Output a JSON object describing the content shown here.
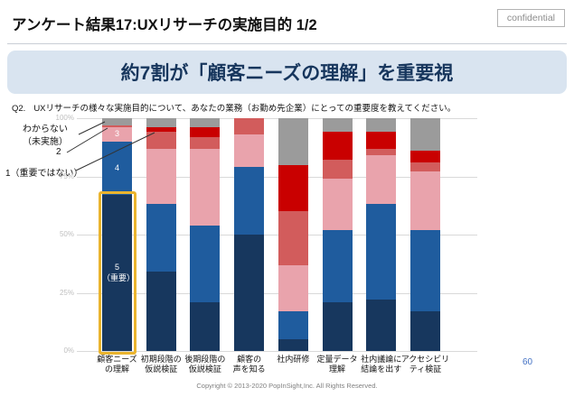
{
  "header": {
    "title": "アンケート結果17:UXリサーチの実施目的 1/2",
    "confidential": "confidential"
  },
  "banner": {
    "text": "約7割が「顧客ニーズの理解」を重要視"
  },
  "question": {
    "label": "Q2.",
    "text": "UXリサーチの様々な実施目的について、あなたの業務（お勤め先企業）にとっての重要度を教えてください。"
  },
  "annotations": {
    "unknown": "わからない\n（未実施）",
    "two": "2",
    "one": "1（重要ではない）"
  },
  "chart_data": {
    "type": "bar",
    "stacked": true,
    "unit": "%",
    "ylim": [
      0,
      100
    ],
    "grid": true,
    "legend_position": "none",
    "yticks": [
      "100%",
      "75%",
      "50%",
      "25%",
      "0%"
    ],
    "categories": [
      "顧客ニーズ\nの理解",
      "初期段階の\n仮説検証",
      "後期段階の\n仮説検証",
      "顧客の\n声を知る",
      "社内研修",
      "定量データ\n理解",
      "社内議論に\n結論を出す",
      "アクセシビリ\nティ検証"
    ],
    "stack_order": "first_series_at_bottom",
    "series": [
      {
        "name": "5（重要）",
        "color": "#17375E",
        "first_bar_label": "5\n（重要）",
        "values": [
          67,
          34,
          21,
          50,
          5,
          21,
          22,
          17
        ]
      },
      {
        "name": "4",
        "color": "#1F5C9E",
        "first_bar_label": "4",
        "values": [
          23,
          29,
          33,
          29,
          12,
          31,
          41,
          35
        ]
      },
      {
        "name": "3",
        "color": "#E9A3AC",
        "first_bar_label": "3",
        "values": [
          6,
          24,
          33,
          14,
          20,
          22,
          21,
          25
        ]
      },
      {
        "name": "2",
        "color": "#D25C5C",
        "values": [
          1,
          7,
          5,
          7,
          23,
          8,
          3,
          4
        ]
      },
      {
        "name": "1（重要ではない）",
        "color": "#C90000",
        "values": [
          0,
          2,
          4,
          0,
          20,
          12,
          7,
          5
        ]
      },
      {
        "name": "わからない（未実施）",
        "color": "#9B9B9B",
        "values": [
          3,
          4,
          4,
          0,
          20,
          6,
          6,
          14
        ]
      }
    ],
    "highlight": {
      "category_index": 0,
      "series": "5（重要）",
      "box_color": "#EAB42E"
    }
  },
  "page_number": "60",
  "footer": "Copyright © 2013-2020 PopInSight,Inc.  All Rights Reserved."
}
